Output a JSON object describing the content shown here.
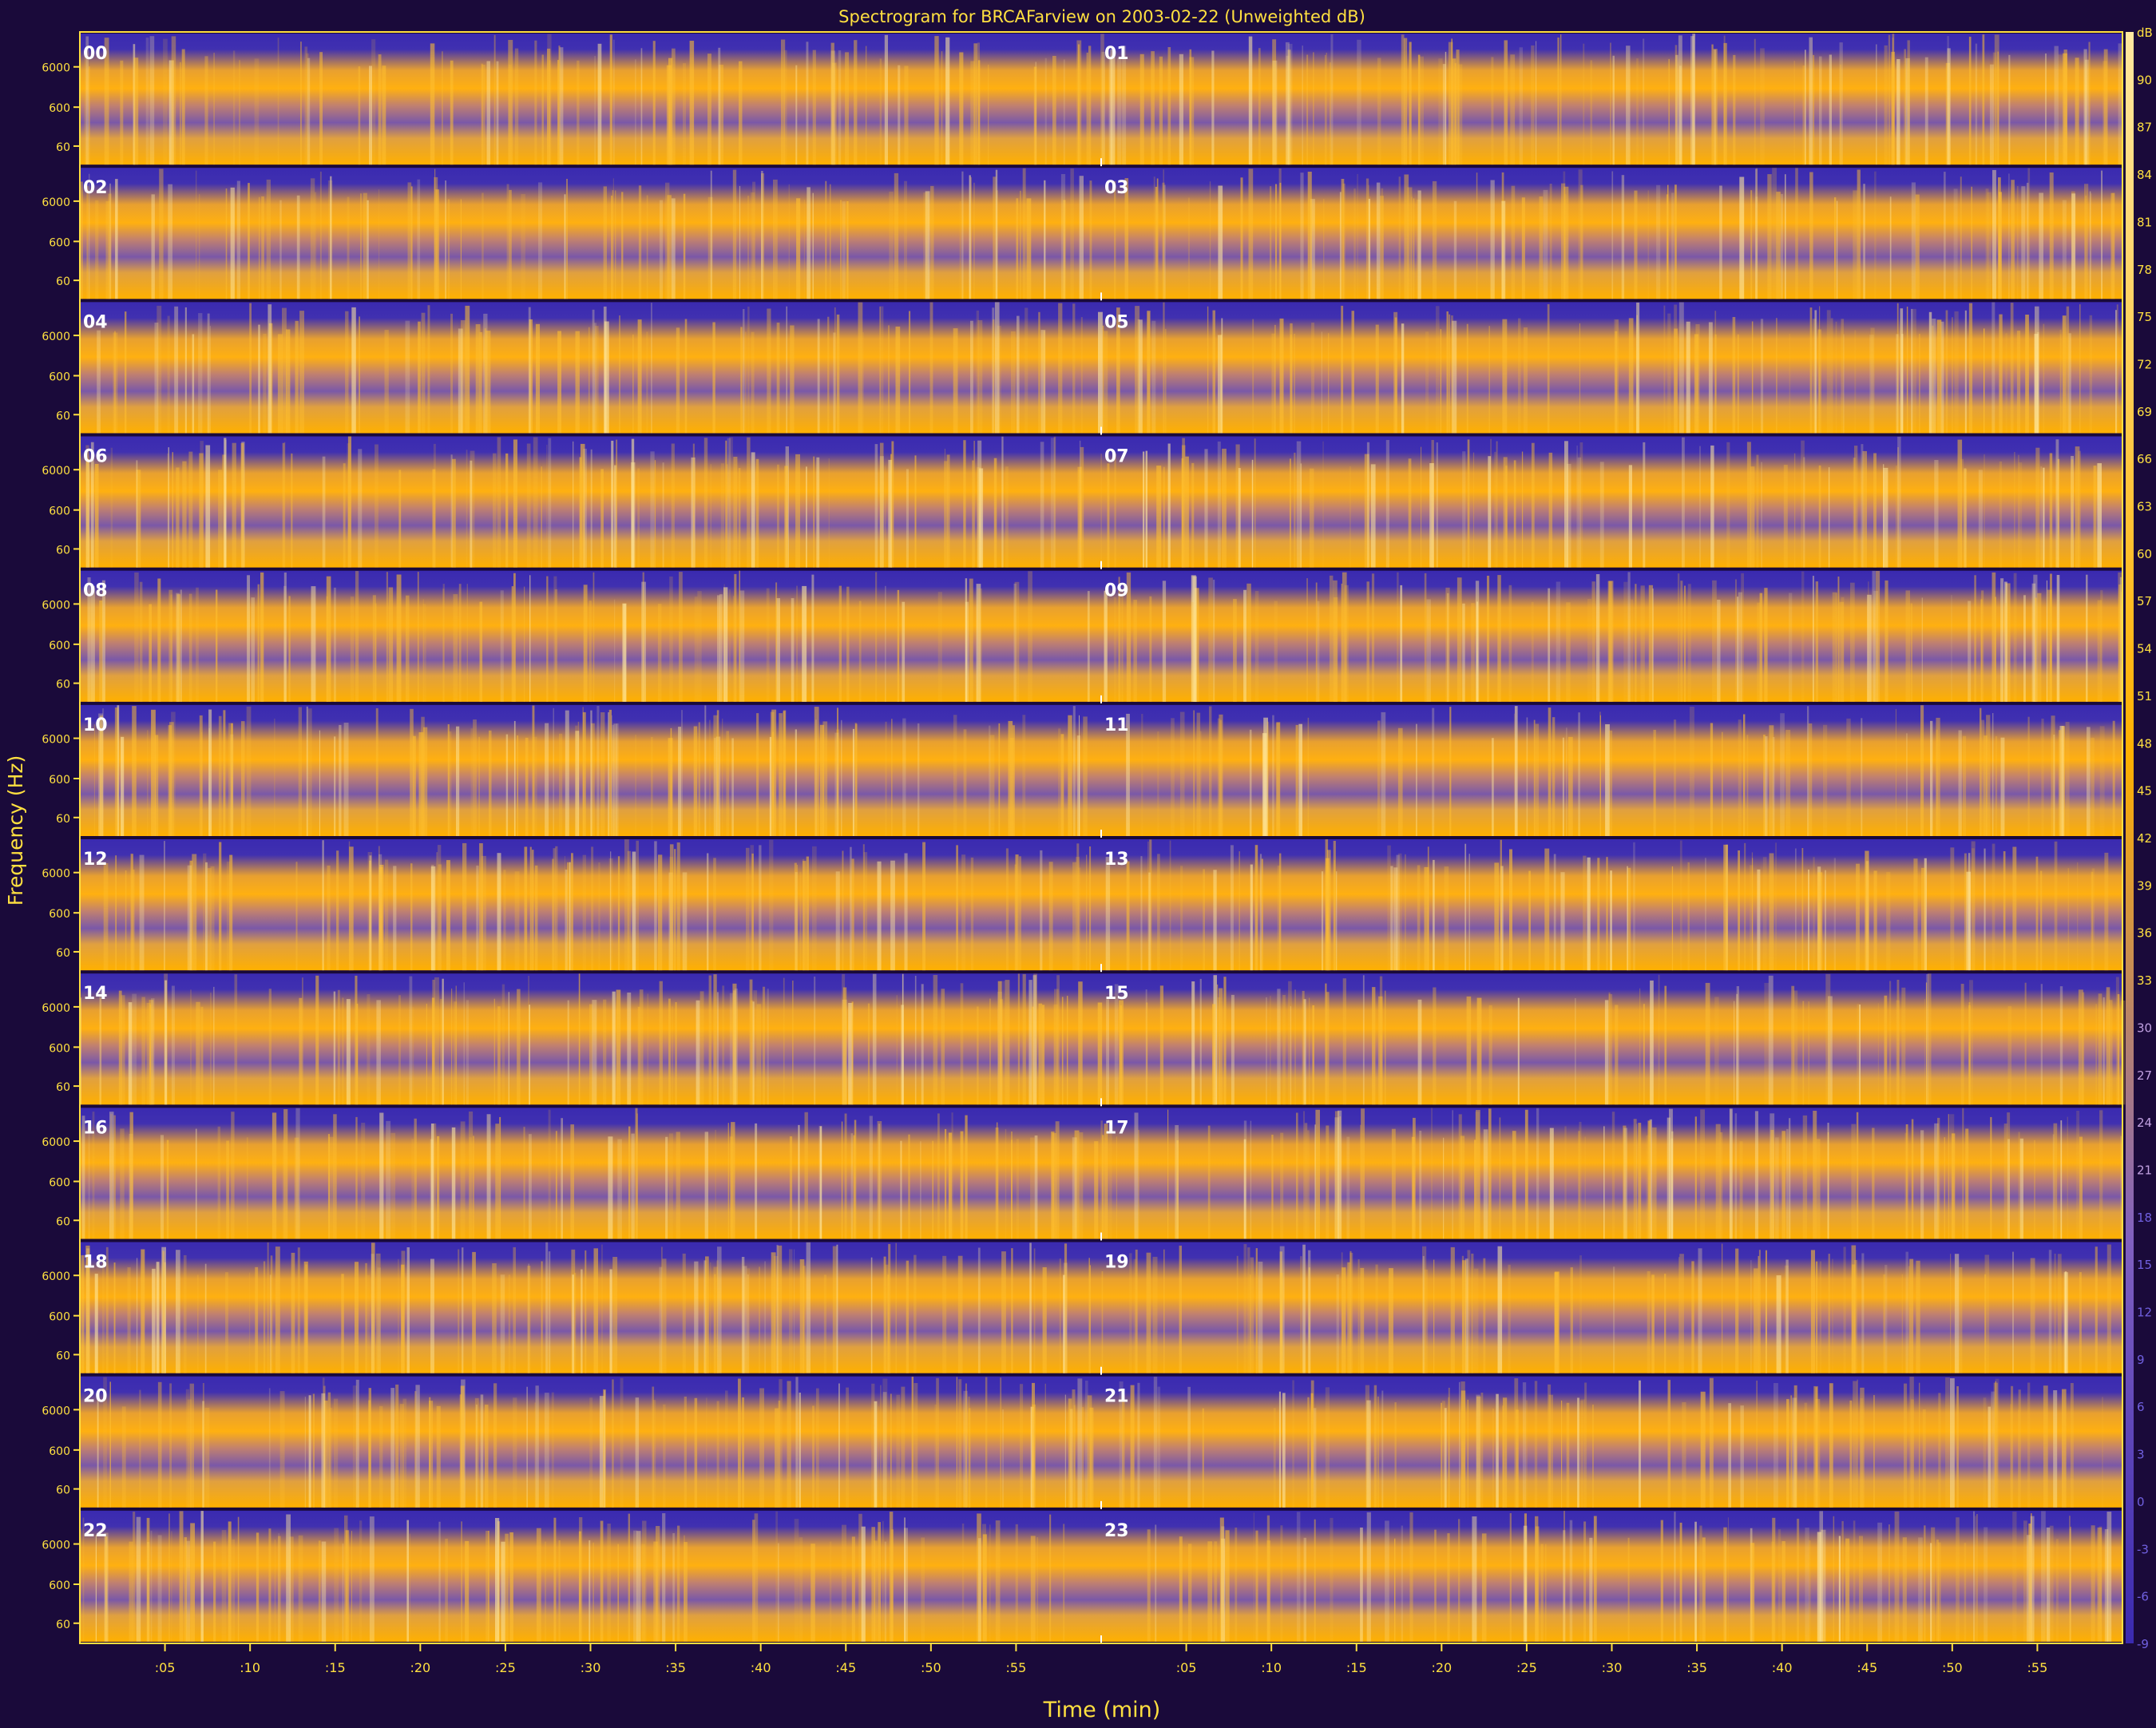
{
  "chart_data": {
    "type": "heatmap",
    "title": "Spectrogram for BRCAFarview on 2003-02-22 (Unweighted dB)",
    "xlabel": "Time (min)",
    "ylabel": "Frequency (Hz)",
    "colorbar_unit": "dB",
    "colorbar_range": [
      -9,
      93
    ],
    "colorbar_ticks": [
      90,
      87,
      84,
      81,
      78,
      75,
      72,
      69,
      66,
      63,
      60,
      57,
      54,
      51,
      48,
      45,
      42,
      39,
      36,
      33,
      30,
      27,
      24,
      21,
      18,
      15,
      12,
      9,
      6,
      3,
      0,
      -3,
      -6,
      -9
    ],
    "hour_labels": [
      "00",
      "01",
      "02",
      "03",
      "04",
      "05",
      "06",
      "07",
      "08",
      "09",
      "10",
      "11",
      "12",
      "13",
      "14",
      "15",
      "16",
      "17",
      "18",
      "19",
      "20",
      "21",
      "22",
      "23"
    ],
    "y_ticks": [
      "6000",
      "600",
      "60"
    ],
    "x_ticks": [
      ":05",
      ":10",
      ":15",
      ":20",
      ":25",
      ":30",
      ":35",
      ":40",
      ":45",
      ":50",
      ":55",
      ":05",
      ":10",
      ":15",
      ":20",
      ":25",
      ":30",
      ":35",
      ":40",
      ":45",
      ":50",
      ":55"
    ],
    "rows": 12,
    "hours_per_row": 2,
    "minutes_per_hour": 60,
    "colormap": [
      "#3a2aa8",
      "#5a3fb0",
      "#a07090",
      "#f0a020",
      "#ffb000",
      "#ffe8a0"
    ]
  }
}
